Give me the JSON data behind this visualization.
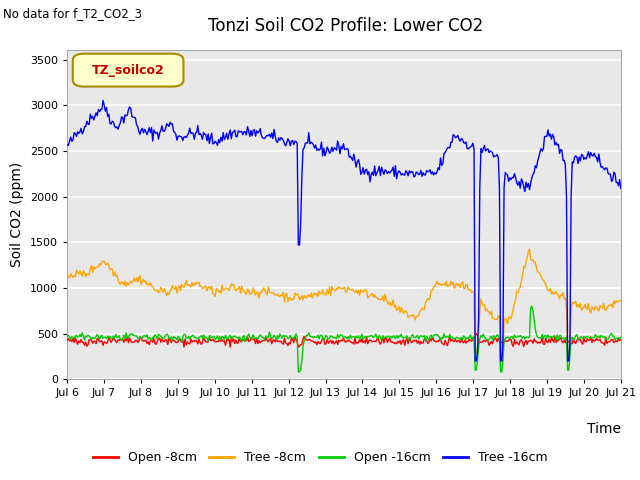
{
  "title": "Tonzi Soil CO2 Profile: Lower CO2",
  "subtitle": "No data for f_T2_CO2_3",
  "ylabel": "Soil CO2 (ppm)",
  "xlabel": "Time",
  "legend_label": "TZ_soilco2",
  "ylim": [
    0,
    3600
  ],
  "yticks": [
    0,
    500,
    1000,
    1500,
    2000,
    2500,
    3000,
    3500
  ],
  "xtick_labels": [
    "Jul 6",
    "Jul 7",
    "Jul 8",
    "Jul 9",
    "Jul 10",
    "Jul 11",
    "Jul 12",
    "Jul 13",
    "Jul 14",
    "Jul 15",
    "Jul 16",
    "Jul 17",
    "Jul 18",
    "Jul 19",
    "Jul 20",
    "Jul 21"
  ],
  "colors": {
    "open_8cm": "#ff0000",
    "tree_8cm": "#ffa500",
    "open_16cm": "#00cc00",
    "tree_16cm": "#0000ff"
  },
  "legend_entries": [
    "Open -8cm",
    "Tree -8cm",
    "Open -16cm",
    "Tree -16cm"
  ],
  "bg_color": "#e8e8e8",
  "ax_bg_color": "#e8e8e8",
  "title_fontsize": 12,
  "label_fontsize": 10,
  "tick_fontsize": 8
}
